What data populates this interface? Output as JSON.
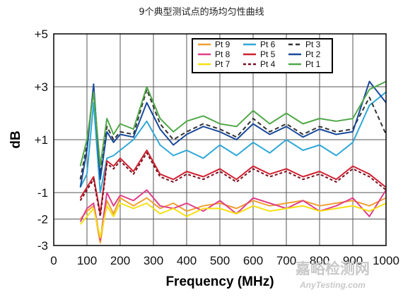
{
  "chart_data": {
    "type": "line",
    "title": "9个典型测试点的场均匀性曲线",
    "xlabel": "Frequency (MHz)",
    "ylabel": "dB",
    "xlim": [
      0,
      1000
    ],
    "ylim": [
      -3,
      5
    ],
    "x_ticks": [
      "0",
      "100",
      "200",
      "300",
      "400",
      "500",
      "600",
      "700",
      "800",
      "900",
      "1000"
    ],
    "y_ticks": [
      {
        "value": 5,
        "label": "+5"
      },
      {
        "value": 3,
        "label": "+3"
      },
      {
        "value": 1,
        "label": "+1"
      },
      {
        "value": -1,
        "label": "-1"
      },
      {
        "value": -2,
        "label": "-2"
      },
      {
        "value": -3,
        "label": "-3"
      }
    ],
    "grid": true,
    "legend_position": "top-right",
    "x": [
      80,
      100,
      120,
      140,
      160,
      180,
      200,
      240,
      280,
      320,
      360,
      400,
      450,
      500,
      550,
      600,
      650,
      700,
      750,
      800,
      850,
      900,
      950,
      1000
    ],
    "series": [
      {
        "name": "Pt 9",
        "color": "#f0a030",
        "dash": "",
        "values": [
          -2.0,
          -1.7,
          -1.5,
          -2.9,
          -1.3,
          -1.8,
          -1.2,
          -1.5,
          -1.2,
          -1.6,
          -1.4,
          -1.7,
          -1.5,
          -1.4,
          -1.6,
          -1.3,
          -1.5,
          -1.4,
          -1.3,
          -1.5,
          -1.4,
          -1.3,
          -1.5,
          -1.2
        ]
      },
      {
        "name": "Pt 8",
        "color": "#e0408a",
        "dash": "",
        "values": [
          -2.1,
          -1.6,
          -1.4,
          -2.8,
          -1.0,
          -1.5,
          -1.1,
          -1.3,
          -0.9,
          -1.5,
          -1.6,
          -1.4,
          -1.7,
          -1.3,
          -1.8,
          -1.2,
          -1.4,
          -1.6,
          -1.3,
          -1.7,
          -1.5,
          -1.2,
          -1.9,
          -0.9
        ]
      },
      {
        "name": "Pt 7",
        "color": "#f5e010",
        "dash": "",
        "values": [
          -2.2,
          -1.9,
          -1.6,
          -2.7,
          -1.5,
          -1.9,
          -1.4,
          -1.6,
          -1.4,
          -1.8,
          -1.6,
          -1.9,
          -1.6,
          -1.6,
          -1.8,
          -1.5,
          -1.7,
          -1.6,
          -1.5,
          -1.7,
          -1.6,
          -1.5,
          -1.7,
          -1.4
        ]
      },
      {
        "name": "Pt 6",
        "color": "#30a8d8",
        "dash": "",
        "values": [
          -0.8,
          -0.3,
          2.4,
          -1.0,
          0.3,
          0.4,
          0.6,
          1.0,
          1.7,
          0.8,
          0.4,
          0.6,
          0.3,
          0.8,
          0.4,
          0.9,
          0.5,
          1.0,
          0.6,
          0.8,
          0.4,
          0.9,
          2.3,
          2.8
        ]
      },
      {
        "name": "Pt 5",
        "color": "#d02030",
        "dash": "",
        "values": [
          -1.2,
          -0.8,
          -0.4,
          -1.8,
          0.2,
          0.0,
          0.3,
          -0.2,
          0.6,
          -0.3,
          -0.5,
          -0.2,
          -0.4,
          -0.1,
          -0.5,
          0.0,
          -0.3,
          -0.1,
          -0.4,
          -0.2,
          -0.5,
          0.0,
          -0.3,
          -0.8
        ]
      },
      {
        "name": "Pt 4",
        "color": "#7a1020",
        "dash": "4,3",
        "values": [
          -1.3,
          -0.9,
          -0.5,
          -1.9,
          0.1,
          -0.1,
          0.2,
          -0.3,
          0.5,
          -0.4,
          -0.6,
          -0.3,
          -0.5,
          -0.2,
          -0.6,
          -0.1,
          -0.4,
          -0.2,
          -0.5,
          -0.3,
          -0.6,
          -0.1,
          -0.4,
          -0.9
        ]
      },
      {
        "name": "Pt 3",
        "color": "#333333",
        "dash": "6,4",
        "values": [
          -0.5,
          0.8,
          3.0,
          -0.3,
          1.5,
          1.0,
          1.3,
          1.2,
          2.9,
          1.6,
          1.0,
          1.3,
          1.6,
          1.4,
          1.1,
          1.8,
          1.3,
          1.6,
          1.2,
          1.5,
          1.3,
          1.4,
          2.6,
          1.2
        ]
      },
      {
        "name": "Pt 2",
        "color": "#1a4a9a",
        "dash": "",
        "values": [
          -0.8,
          0.6,
          3.1,
          -0.5,
          1.3,
          0.9,
          1.2,
          1.1,
          2.4,
          1.4,
          0.8,
          1.2,
          1.5,
          1.3,
          1.0,
          1.6,
          1.2,
          1.5,
          1.1,
          1.4,
          1.2,
          1.3,
          3.2,
          2.4
        ]
      },
      {
        "name": "Pt 1",
        "color": "#50a848",
        "dash": "",
        "values": [
          0.0,
          1.0,
          2.8,
          0.0,
          1.8,
          1.2,
          1.6,
          1.4,
          3.0,
          1.8,
          1.3,
          1.7,
          1.9,
          1.6,
          1.5,
          2.1,
          1.6,
          2.0,
          1.6,
          1.8,
          1.7,
          1.8,
          2.9,
          3.2
        ]
      }
    ]
  },
  "watermark": {
    "cn": "嘉峪检测网",
    "en": "AnyTesting.com"
  }
}
